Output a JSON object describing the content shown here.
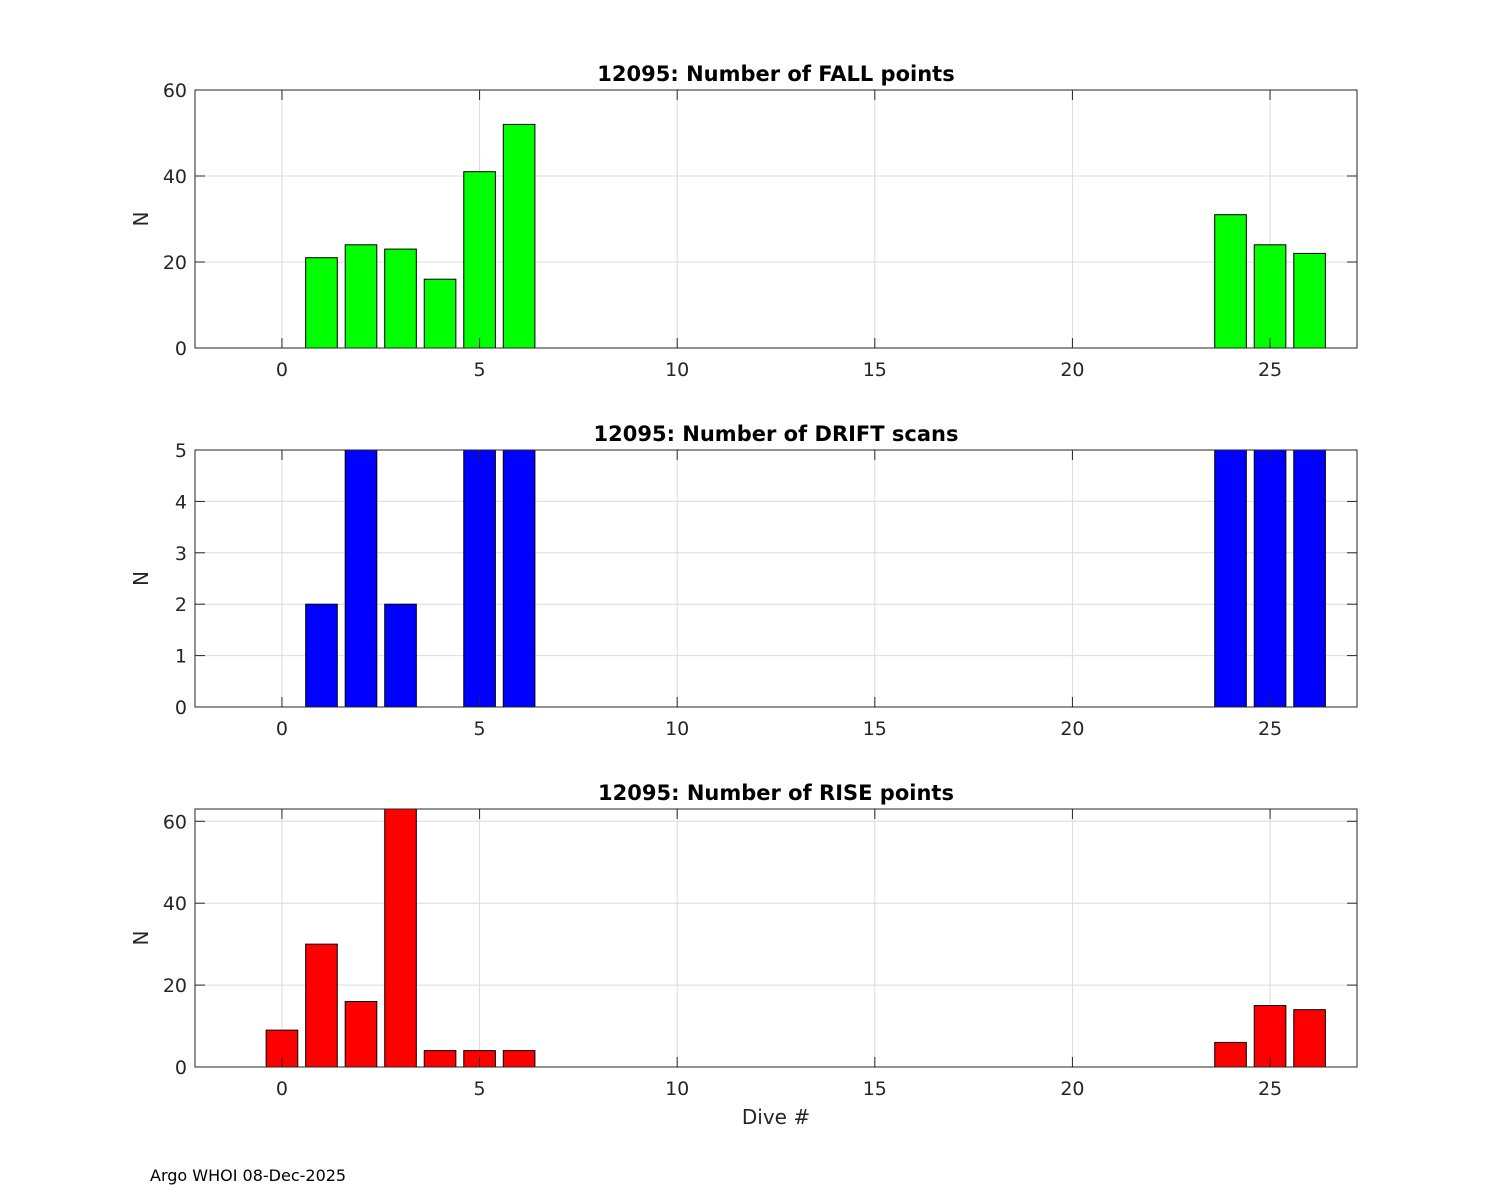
{
  "footer": "Argo WHOI 08-Dec-2025",
  "chart_data": [
    {
      "type": "bar",
      "title": "12095: Number of FALL points",
      "xlabel": "",
      "ylabel": "N",
      "color": "#00ff00",
      "xlim": [
        -2.2,
        27.2
      ],
      "ylim": [
        0,
        60
      ],
      "xticks": [
        0,
        5,
        10,
        15,
        20,
        25
      ],
      "yticks": [
        0,
        20,
        40,
        60
      ],
      "grid": true,
      "x": [
        1,
        2,
        3,
        4,
        5,
        6,
        24,
        25,
        26
      ],
      "values": [
        21,
        24,
        23,
        16,
        41,
        52,
        31,
        24,
        22
      ]
    },
    {
      "type": "bar",
      "title": "12095: Number of DRIFT scans",
      "xlabel": "",
      "ylabel": "N",
      "color": "#0000ff",
      "xlim": [
        -2.2,
        27.2
      ],
      "ylim": [
        0,
        5
      ],
      "xticks": [
        0,
        5,
        10,
        15,
        20,
        25
      ],
      "yticks": [
        0,
        1,
        2,
        3,
        4,
        5
      ],
      "grid": true,
      "x": [
        1,
        2,
        3,
        5,
        6,
        24,
        25,
        26
      ],
      "values": [
        2,
        5,
        2,
        5,
        5,
        5,
        5,
        5
      ]
    },
    {
      "type": "bar",
      "title": "12095: Number of RISE points",
      "xlabel": "Dive #",
      "ylabel": "N",
      "color": "#ff0000",
      "xlim": [
        -2.2,
        27.2
      ],
      "ylim": [
        0,
        63
      ],
      "xticks": [
        0,
        5,
        10,
        15,
        20,
        25
      ],
      "yticks": [
        0,
        20,
        40,
        60
      ],
      "grid": true,
      "x": [
        0,
        1,
        2,
        3,
        4,
        5,
        6,
        24,
        25,
        26
      ],
      "values": [
        9,
        30,
        16,
        63,
        4,
        4,
        4,
        6,
        15,
        14
      ]
    }
  ]
}
